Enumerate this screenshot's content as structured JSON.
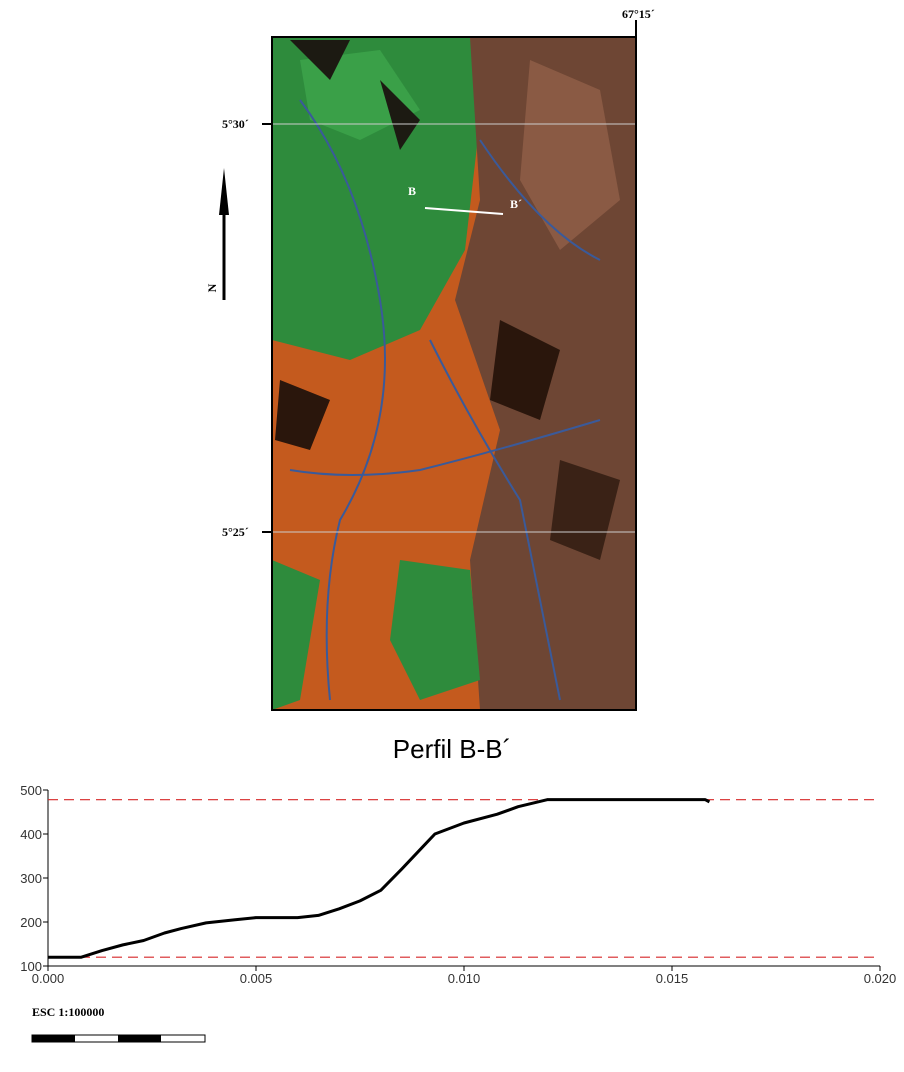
{
  "map": {
    "top_label": "67°15´",
    "lat_labels": [
      "5°30´",
      "5°25´"
    ],
    "north": "N",
    "profile_start": "B",
    "profile_end": "B´",
    "scale": "ESC 1:100000"
  },
  "chart_data": {
    "type": "line",
    "title": "Perfil B-B´",
    "x": [
      0,
      0.0008,
      0.0013,
      0.0018,
      0.0023,
      0.0028,
      0.0032,
      0.0038,
      0.0045,
      0.005,
      0.006,
      0.0065,
      0.007,
      0.0075,
      0.008,
      0.0085,
      0.009,
      0.0093,
      0.01,
      0.0108,
      0.0113,
      0.012,
      0.013,
      0.0158,
      0.0159
    ],
    "values": [
      120,
      120,
      135,
      148,
      158,
      175,
      185,
      198,
      205,
      210,
      210,
      215,
      230,
      248,
      272,
      320,
      370,
      400,
      425,
      445,
      462,
      478,
      478,
      478,
      473
    ],
    "color": "#000000",
    "reference_lines": [
      478,
      120
    ],
    "reference_color": "#d62728",
    "xlim": [
      0,
      0.02
    ],
    "ylim": [
      100,
      500
    ],
    "xticks": [
      {
        "value": 0,
        "label": "0.000"
      },
      {
        "value": 0.005,
        "label": "0.005"
      },
      {
        "value": 0.01,
        "label": "0.010"
      },
      {
        "value": 0.015,
        "label": "0.015"
      },
      {
        "value": 0.02,
        "label": "0.020"
      }
    ],
    "yticks": [
      100,
      200,
      300,
      400,
      500
    ]
  }
}
